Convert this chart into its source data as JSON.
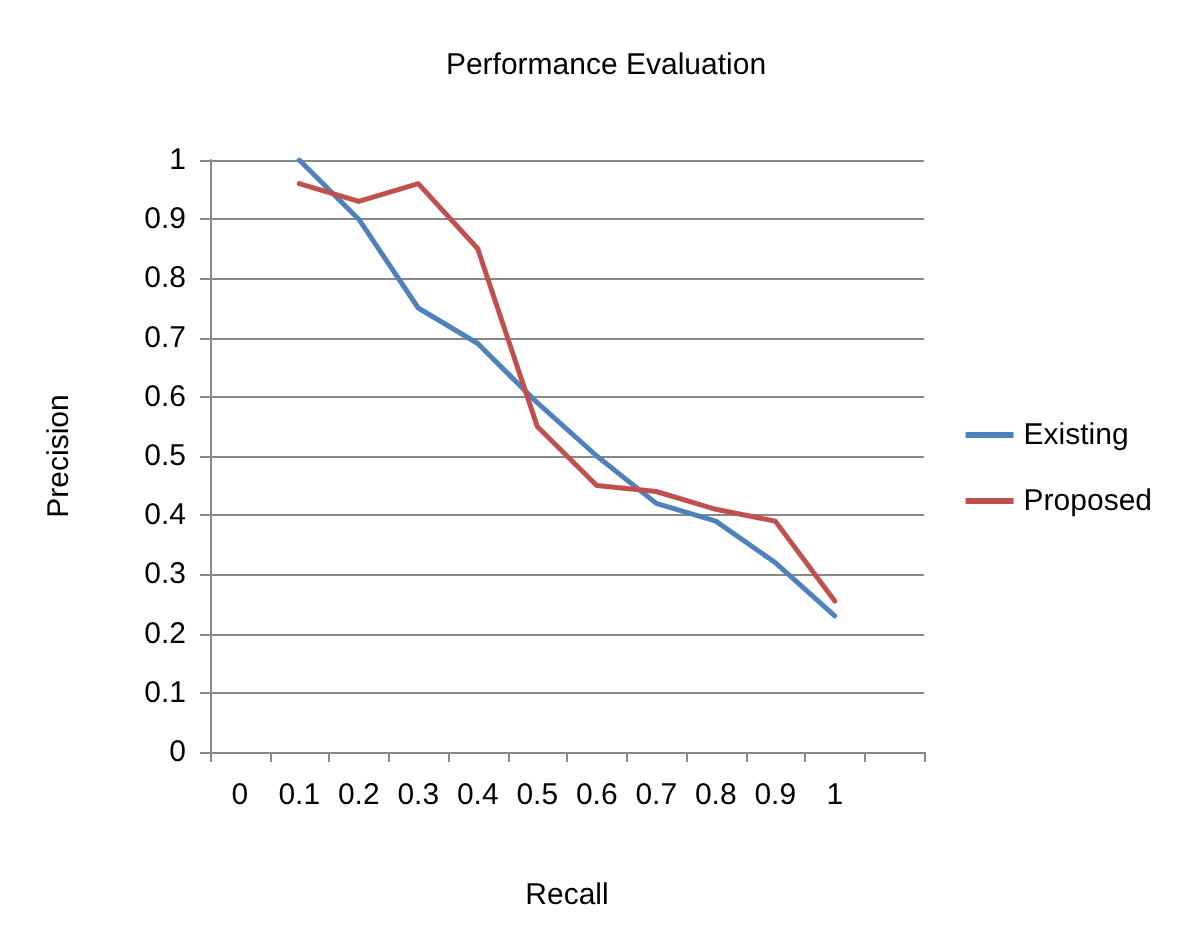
{
  "chart_data": {
    "type": "line",
    "title": "Performance Evaluation",
    "xlabel": "Recall",
    "ylabel": "Precision",
    "categories": [
      "0",
      "0.1",
      "0.2",
      "0.3",
      "0.4",
      "0.5",
      "0.6",
      "0.7",
      "0.8",
      "0.9",
      "1",
      null
    ],
    "series": [
      {
        "name": "Existing",
        "color": "#4f81bd",
        "values": [
          null,
          1.0,
          0.9,
          0.75,
          0.69,
          0.59,
          0.5,
          0.42,
          0.39,
          0.32,
          0.23,
          null
        ]
      },
      {
        "name": "Proposed",
        "color": "#c0504d",
        "values": [
          null,
          0.96,
          0.93,
          0.96,
          0.85,
          0.55,
          0.45,
          0.44,
          0.41,
          0.39,
          0.255,
          null
        ]
      }
    ],
    "ylim": [
      0,
      1
    ],
    "yticks": [
      0,
      0.1,
      0.2,
      0.3,
      0.4,
      0.5,
      0.6,
      0.7,
      0.8,
      0.9,
      1
    ],
    "grid": "y",
    "legend": "right",
    "marker": "none",
    "line_style": "solid"
  }
}
